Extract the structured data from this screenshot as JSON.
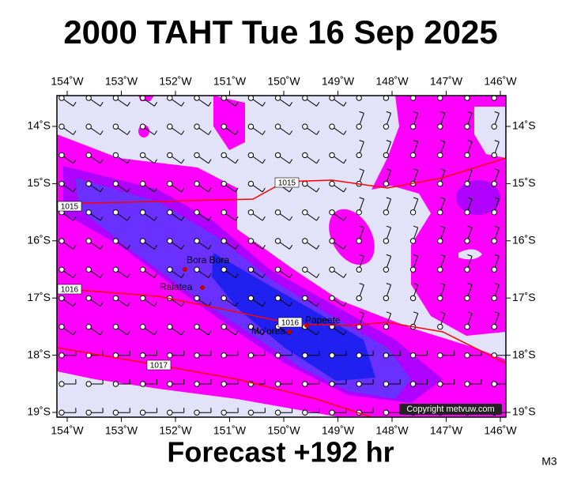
{
  "header": {
    "title": "2000 TAHT Tue 16 Sep 2025"
  },
  "map": {
    "lon_labels": [
      "154˚W",
      "153˚W",
      "152˚W",
      "151˚W",
      "150˚W",
      "149˚W",
      "148˚W",
      "147˚W",
      "146˚W"
    ],
    "lat_labels": [
      "14˚S",
      "15˚S",
      "16˚S",
      "17˚S",
      "18˚S",
      "19˚S"
    ],
    "isobar_labels": [
      "1015",
      "1015",
      "1016",
      "1016",
      "1017"
    ],
    "places": [
      "Bora Bora",
      "Raiatea",
      "Papeete",
      "Mo'orea"
    ],
    "copyright": "Copyright metvuw.com"
  },
  "footer": {
    "forecast": "Forecast +192 hr",
    "code": "M3"
  }
}
